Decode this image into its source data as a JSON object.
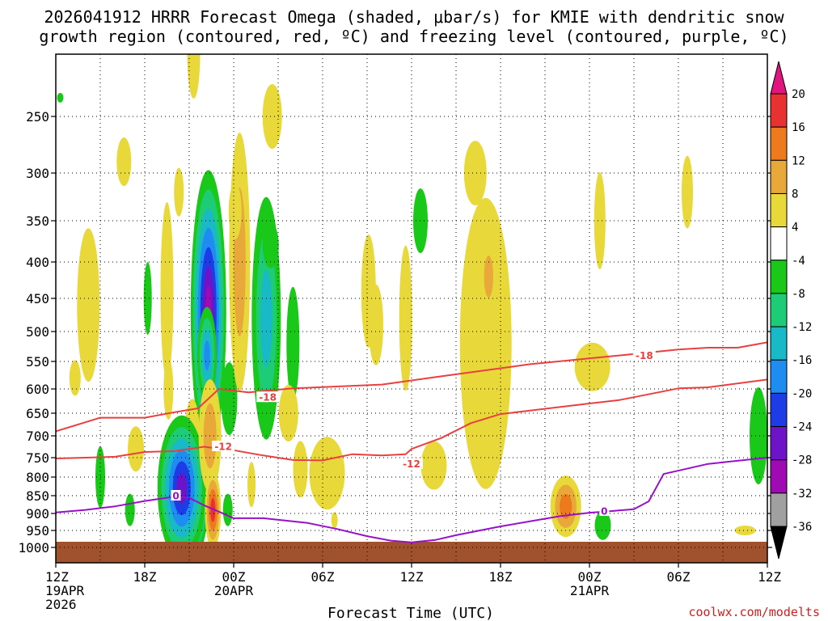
{
  "chart_data": {
    "type": "heatmap",
    "title_line1": "2026041912 HRRR Forecast Omega (shaded, μbar/s) for KMIE with dendritic snow",
    "title_line2": "growth region (contoured, red, ºC) and freezing level (contoured, purple, ºC)",
    "xlabel": "Forecast Time (UTC)",
    "credit": "coolwx.com/modelts",
    "x_range_hours": [
      0,
      48
    ],
    "y_range_hpa": [
      200,
      1050
    ],
    "x_ticks": [
      {
        "hour": 0,
        "label": "12Z",
        "sub1": "19APR",
        "sub2": "2026"
      },
      {
        "hour": 6,
        "label": "18Z",
        "sub1": "",
        "sub2": ""
      },
      {
        "hour": 12,
        "label": "00Z",
        "sub1": "20APR",
        "sub2": ""
      },
      {
        "hour": 18,
        "label": "06Z",
        "sub1": "",
        "sub2": ""
      },
      {
        "hour": 24,
        "label": "12Z",
        "sub1": "",
        "sub2": ""
      },
      {
        "hour": 30,
        "label": "18Z",
        "sub1": "",
        "sub2": ""
      },
      {
        "hour": 36,
        "label": "00Z",
        "sub1": "21APR",
        "sub2": ""
      },
      {
        "hour": 42,
        "label": "06Z",
        "sub1": "",
        "sub2": ""
      },
      {
        "hour": 48,
        "label": "12Z",
        "sub1": "",
        "sub2": ""
      }
    ],
    "y_ticks": [
      {
        "p": 250,
        "label": "250"
      },
      {
        "p": 300,
        "label": "300"
      },
      {
        "p": 350,
        "label": "350"
      },
      {
        "p": 400,
        "label": "400"
      },
      {
        "p": 450,
        "label": "450"
      },
      {
        "p": 500,
        "label": "500"
      },
      {
        "p": 550,
        "label": "550"
      },
      {
        "p": 600,
        "label": "600"
      },
      {
        "p": 650,
        "label": "650"
      },
      {
        "p": 700,
        "label": "700"
      },
      {
        "p": 750,
        "label": "750"
      },
      {
        "p": 800,
        "label": "800"
      },
      {
        "p": 850,
        "label": "850"
      },
      {
        "p": 900,
        "label": "900"
      },
      {
        "p": 950,
        "label": "950"
      },
      {
        "p": 1000,
        "label": "1000"
      }
    ],
    "colorbar": {
      "ticks": [
        "20",
        "16",
        "12",
        "8",
        "4",
        "-4",
        "-8",
        "-12",
        "-16",
        "-20",
        "-24",
        "-28",
        "-32",
        "-36"
      ],
      "colors": [
        "#e0157d",
        "#e83232",
        "#ee7a1e",
        "#e8a83a",
        "#e8d83a",
        "#ffffff",
        "#19c819",
        "#1ecc78",
        "#19b9c8",
        "#1e8cf0",
        "#1e3ce6",
        "#6e14c8",
        "#a00ab4",
        "#a0a0a0",
        "#000000"
      ]
    },
    "omega_blobs": [
      {
        "t": 0.3,
        "p": 235,
        "value": -7.0
      },
      {
        "t": 2.2,
        "p": 460,
        "value": 5.0
      },
      {
        "t": 1.3,
        "p": 580,
        "value": 6.5
      },
      {
        "t": 3.0,
        "p": 800,
        "value": -6.0
      },
      {
        "t": 4.6,
        "p": 290,
        "value": 5.0
      },
      {
        "t": 6.2,
        "p": 450,
        "value": -6.0
      },
      {
        "t": 5.4,
        "p": 730,
        "value": 5.0
      },
      {
        "t": 5.0,
        "p": 890,
        "value": -6.0
      },
      {
        "t": 9.1,
        "p": 175,
        "value": 5.5
      },
      {
        "t": 9.3,
        "p": 200,
        "value": 5.5
      },
      {
        "t": 8.3,
        "p": 320,
        "value": 5.0
      },
      {
        "t": 7.5,
        "p": 440,
        "value": 5.0
      },
      {
        "t": 10.3,
        "p": 470,
        "value": -30.0
      },
      {
        "t": 10.2,
        "p": 540,
        "value": -18.0
      },
      {
        "t": 7.6,
        "p": 600,
        "value": 5.0
      },
      {
        "t": 9.2,
        "p": 690,
        "value": 5.0
      },
      {
        "t": 8.9,
        "p": 858,
        "value": -38.0
      },
      {
        "t": 8.5,
        "p": 830,
        "value": -26.0
      },
      {
        "t": 10.4,
        "p": 700,
        "value": 9.0
      },
      {
        "t": 10.6,
        "p": 890,
        "value": 18.0
      },
      {
        "t": 11.6,
        "p": 890,
        "value": -6.0
      },
      {
        "t": 11.7,
        "p": 620,
        "value": -6.0
      },
      {
        "t": 12.4,
        "p": 400,
        "value": 8.0
      },
      {
        "t": 12.1,
        "p": 340,
        "value": 5.0
      },
      {
        "t": 13.2,
        "p": 820,
        "value": 5.0
      },
      {
        "t": 14.2,
        "p": 480,
        "value": -12.0
      },
      {
        "t": 14.5,
        "p": 380,
        "value": -6.0
      },
      {
        "t": 14.6,
        "p": 250,
        "value": 5.0
      },
      {
        "t": 16.0,
        "p": 520,
        "value": -6.0
      },
      {
        "t": 15.7,
        "p": 650,
        "value": 5.0
      },
      {
        "t": 16.5,
        "p": 780,
        "value": 5.0
      },
      {
        "t": 18.3,
        "p": 790,
        "value": 5.0
      },
      {
        "t": 18.8,
        "p": 920,
        "value": 5.0
      },
      {
        "t": 21.1,
        "p": 440,
        "value": 5.0
      },
      {
        "t": 21.6,
        "p": 490,
        "value": 5.0
      },
      {
        "t": 24.6,
        "p": 350,
        "value": -6.0
      },
      {
        "t": 23.6,
        "p": 480,
        "value": 5.0
      },
      {
        "t": 25.5,
        "p": 770,
        "value": 5.0
      },
      {
        "t": 29.0,
        "p": 520,
        "value": 5.0
      },
      {
        "t": 28.3,
        "p": 300,
        "value": 5.0
      },
      {
        "t": 29.2,
        "p": 420,
        "value": 9.0
      },
      {
        "t": 34.4,
        "p": 880,
        "value": 14.0
      },
      {
        "t": 36.2,
        "p": 560,
        "value": 5.0
      },
      {
        "t": 36.7,
        "p": 350,
        "value": 5.0
      },
      {
        "t": 36.9,
        "p": 935,
        "value": -6.0
      },
      {
        "t": 42.6,
        "p": 320,
        "value": 5.0
      },
      {
        "t": 46.5,
        "p": 950,
        "value": 5.0
      },
      {
        "t": 47.4,
        "p": 700,
        "value": -6.0
      }
    ],
    "contours": [
      {
        "name": "dgz-upper",
        "color": "#e84040",
        "level": "-18",
        "points": [
          [
            0,
            690
          ],
          [
            3,
            660
          ],
          [
            6,
            660
          ],
          [
            8,
            648
          ],
          [
            9.6,
            640
          ],
          [
            11,
            600
          ],
          [
            13,
            607
          ],
          [
            16,
            599
          ],
          [
            22,
            592
          ],
          [
            26,
            577
          ],
          [
            32,
            555
          ],
          [
            38,
            540
          ],
          [
            42,
            530
          ],
          [
            44,
            527
          ],
          [
            46,
            527
          ],
          [
            48,
            518
          ]
        ]
      },
      {
        "name": "dgz-lower",
        "color": "#e84040",
        "level": "-12",
        "points": [
          [
            0,
            752
          ],
          [
            2,
            750
          ],
          [
            4,
            748
          ],
          [
            6,
            737
          ],
          [
            8,
            735
          ],
          [
            10,
            725
          ],
          [
            12,
            733
          ],
          [
            14,
            745
          ],
          [
            16,
            756
          ],
          [
            18,
            757
          ],
          [
            20,
            742
          ],
          [
            22,
            745
          ],
          [
            23.6,
            742
          ],
          [
            24,
            730
          ],
          [
            26,
            705
          ],
          [
            28,
            672
          ],
          [
            30,
            652
          ],
          [
            36,
            630
          ],
          [
            38,
            623
          ],
          [
            42,
            599
          ],
          [
            44,
            597
          ],
          [
            48,
            583
          ]
        ]
      },
      {
        "name": "freezing-level",
        "color": "#9810c8",
        "level": "0",
        "points": [
          [
            0,
            897
          ],
          [
            2,
            890
          ],
          [
            4,
            880
          ],
          [
            6,
            865
          ],
          [
            8,
            853
          ],
          [
            9,
            856
          ],
          [
            10,
            877
          ],
          [
            11,
            895
          ],
          [
            12,
            914
          ],
          [
            14,
            914
          ],
          [
            17,
            928
          ],
          [
            19,
            946
          ],
          [
            21,
            967
          ],
          [
            22.6,
            980
          ],
          [
            24,
            985
          ],
          [
            25.6,
            978
          ],
          [
            27,
            964
          ],
          [
            30,
            938
          ],
          [
            34,
            908
          ],
          [
            36,
            898
          ],
          [
            37,
            895
          ],
          [
            39,
            888
          ],
          [
            40,
            866
          ],
          [
            41,
            792
          ],
          [
            44,
            766
          ],
          [
            48,
            750
          ]
        ]
      }
    ],
    "contour_labels": [
      {
        "text": "-18",
        "t": 39.7,
        "p": 540,
        "color": "#e84040"
      },
      {
        "text": "-18",
        "t": 14.3,
        "p": 617,
        "color": "#e84040"
      },
      {
        "text": "-12",
        "t": 11.3,
        "p": 724,
        "color": "#e84040"
      },
      {
        "text": "-12",
        "t": 24.0,
        "p": 766,
        "color": "#e84040"
      },
      {
        "text": "0",
        "t": 8.1,
        "p": 850,
        "color": "#9810c8"
      },
      {
        "text": "0",
        "t": 37.0,
        "p": 893,
        "color": "#9810c8"
      }
    ]
  }
}
